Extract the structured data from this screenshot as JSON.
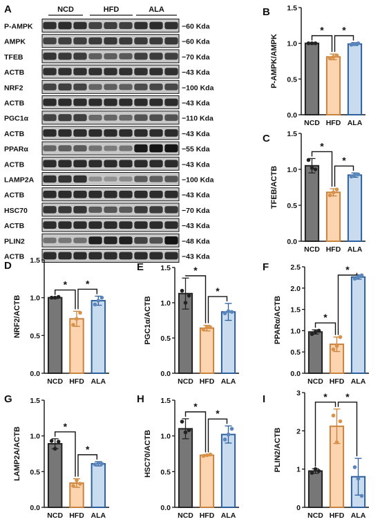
{
  "figure": {
    "blot": {
      "panel_letter": "A",
      "groups": [
        "NCD",
        "HFD",
        "ALA"
      ],
      "rows": [
        {
          "name": "P-AMPK",
          "size": "60 Kda"
        },
        {
          "name": "AMPK",
          "size": "60 Kda"
        },
        {
          "name": "TFEB",
          "size": "70 Kda"
        },
        {
          "name": "ACTB",
          "size": "43 Kda"
        },
        {
          "name": "NRF2",
          "size": "100 Kda"
        },
        {
          "name": "ACTB",
          "size": "43 Kda"
        },
        {
          "name": "PGC1α",
          "size": "110 Kda"
        },
        {
          "name": "ACTB",
          "size": "43 Kda"
        },
        {
          "name": "PPARα",
          "size": "55 Kda"
        },
        {
          "name": "ACTB",
          "size": "43 Kda"
        },
        {
          "name": "LAMP2A",
          "size": "100 Kda"
        },
        {
          "name": "ACTB",
          "size": "43 Kda"
        },
        {
          "name": "HSC70",
          "size": "70 Kda"
        },
        {
          "name": "ACTB",
          "size": "43 Kda"
        },
        {
          "name": "PLIN2",
          "size": "48 Kda"
        },
        {
          "name": "ACTB",
          "size": "43 Kda"
        }
      ],
      "band_intensity": [
        [
          0.8,
          0.82,
          0.8,
          0.7,
          0.72,
          0.72,
          0.8,
          0.82,
          0.8
        ],
        [
          0.7,
          0.72,
          0.72,
          0.74,
          0.76,
          0.75,
          0.74,
          0.74,
          0.76
        ],
        [
          0.78,
          0.76,
          0.74,
          0.55,
          0.56,
          0.58,
          0.72,
          0.74,
          0.72
        ],
        [
          0.8,
          0.8,
          0.8,
          0.8,
          0.8,
          0.8,
          0.8,
          0.8,
          0.8
        ],
        [
          0.7,
          0.72,
          0.7,
          0.52,
          0.55,
          0.55,
          0.66,
          0.68,
          0.68
        ],
        [
          0.82,
          0.82,
          0.82,
          0.82,
          0.82,
          0.82,
          0.82,
          0.82,
          0.82
        ],
        [
          0.7,
          0.72,
          0.72,
          0.5,
          0.52,
          0.5,
          0.62,
          0.64,
          0.62
        ],
        [
          0.82,
          0.82,
          0.82,
          0.82,
          0.82,
          0.82,
          0.82,
          0.82,
          0.82
        ],
        [
          0.52,
          0.55,
          0.58,
          0.45,
          0.4,
          0.44,
          0.92,
          0.95,
          0.95
        ],
        [
          0.82,
          0.82,
          0.82,
          0.82,
          0.82,
          0.82,
          0.82,
          0.82,
          0.82
        ],
        [
          0.8,
          0.78,
          0.8,
          0.3,
          0.28,
          0.32,
          0.58,
          0.56,
          0.6
        ],
        [
          0.82,
          0.82,
          0.82,
          0.82,
          0.82,
          0.82,
          0.82,
          0.82,
          0.82
        ],
        [
          0.78,
          0.76,
          0.78,
          0.58,
          0.6,
          0.58,
          0.75,
          0.74,
          0.76
        ],
        [
          0.82,
          0.82,
          0.82,
          0.82,
          0.82,
          0.82,
          0.82,
          0.82,
          0.82
        ],
        [
          0.45,
          0.42,
          0.46,
          0.88,
          0.86,
          0.88,
          0.7,
          0.62,
          0.95
        ],
        [
          0.82,
          0.82,
          0.82,
          0.82,
          0.82,
          0.82,
          0.82,
          0.82,
          0.82
        ]
      ]
    },
    "colors": {
      "bars": [
        "#777777",
        "#fcd5b0",
        "#c9dbee"
      ],
      "edges": [
        "#222222",
        "#c8823d",
        "#2c5f9e"
      ],
      "points": [
        "#222222",
        "#d8924a",
        "#5b86bb"
      ]
    },
    "significance_marker": "*"
  },
  "chart_data": [
    {
      "panel": "B",
      "type": "bar",
      "categories": [
        "NCD",
        "HFD",
        "ALA"
      ],
      "ylabel": "P-AMPK/AMPK",
      "ylim": [
        0,
        1.5
      ],
      "ticks": [
        0.0,
        0.5,
        1.0,
        1.5
      ],
      "tick_labels": [
        "0.0",
        "0.5",
        "1.0",
        "1.5"
      ],
      "values": [
        1.0,
        0.81,
        0.99
      ],
      "errors": [
        0.01,
        0.04,
        0.02
      ],
      "points": [
        [
          1.0,
          1.0,
          1.0
        ],
        [
          0.79,
          0.81,
          0.83
        ],
        [
          0.98,
          0.99,
          1.0
        ]
      ],
      "significance": [
        [
          0,
          1
        ],
        [
          1,
          2
        ]
      ]
    },
    {
      "panel": "C",
      "type": "bar",
      "categories": [
        "NCD",
        "HFD",
        "ALA"
      ],
      "ylabel": "TFEB/ACTB",
      "ylim": [
        0,
        1.5
      ],
      "ticks": [
        0.0,
        0.5,
        1.0,
        1.5
      ],
      "tick_labels": [
        "0.0",
        "0.5",
        "1.0",
        "1.5"
      ],
      "values": [
        1.05,
        0.68,
        0.92
      ],
      "errors": [
        0.1,
        0.05,
        0.03
      ],
      "points": [
        [
          1.13,
          1.02,
          1.0
        ],
        [
          0.64,
          0.68,
          0.72
        ],
        [
          0.9,
          0.92,
          0.93
        ]
      ],
      "significance": [
        [
          0,
          1
        ],
        [
          1,
          2
        ]
      ]
    },
    {
      "panel": "D",
      "type": "bar",
      "categories": [
        "NCD",
        "HFD",
        "ALA"
      ],
      "ylabel": "NRF2/ACTB",
      "ylim": [
        0,
        1.5
      ],
      "ticks": [
        0.0,
        0.5,
        1.0,
        1.5
      ],
      "tick_labels": [
        "0.0",
        "0.5",
        "1.0",
        "1.5"
      ],
      "values": [
        1.0,
        0.72,
        0.96
      ],
      "errors": [
        0.01,
        0.1,
        0.06
      ],
      "points": [
        [
          1.0,
          1.0,
          1.01
        ],
        [
          0.64,
          0.72,
          0.8
        ],
        [
          0.91,
          0.96,
          1.0
        ]
      ],
      "significance": [
        [
          0,
          1
        ],
        [
          1,
          2
        ]
      ]
    },
    {
      "panel": "E",
      "type": "bar",
      "categories": [
        "NCD",
        "HFD",
        "ALA"
      ],
      "ylabel": "PGC1α/ACTB",
      "ylim": [
        0,
        1.5
      ],
      "ticks": [
        0.0,
        0.5,
        1.0,
        1.5
      ],
      "tick_labels": [
        "0.0",
        "0.5",
        "1.0",
        "1.5"
      ],
      "values": [
        1.13,
        0.64,
        0.87
      ],
      "errors": [
        0.22,
        0.04,
        0.12
      ],
      "points": [
        [
          1.17,
          1.0,
          1.1
        ],
        [
          0.62,
          0.66,
          0.65
        ],
        [
          0.85,
          0.88,
          0.87
        ]
      ],
      "significance": [
        [
          0,
          1
        ],
        [
          1,
          2
        ]
      ]
    },
    {
      "panel": "F",
      "type": "bar",
      "categories": [
        "NCD",
        "HFD",
        "ALA"
      ],
      "ylabel": "PPARα/ACTB",
      "ylim": [
        0,
        2.5
      ],
      "ticks": [
        0.0,
        0.5,
        1.0,
        1.5,
        2.0,
        2.5
      ],
      "tick_labels": [
        "0.0",
        "0.5",
        "1.0",
        "1.5",
        "2.0",
        "2.5"
      ],
      "values": [
        0.97,
        0.68,
        2.26
      ],
      "errors": [
        0.05,
        0.17,
        0.05
      ],
      "points": [
        [
          0.92,
          0.97,
          1.0
        ],
        [
          0.56,
          0.64,
          0.85
        ],
        [
          2.22,
          2.26,
          2.3
        ]
      ],
      "significance": [
        [
          0,
          1
        ],
        [
          1,
          2
        ]
      ]
    },
    {
      "panel": "G",
      "type": "bar",
      "categories": [
        "NCD",
        "HFD",
        "ALA"
      ],
      "ylabel": "LAMP2A/ACTB",
      "ylim": [
        0,
        1.5
      ],
      "ticks": [
        0.0,
        0.5,
        1.0,
        1.5
      ],
      "tick_labels": [
        "0.0",
        "0.5",
        "1.0",
        "1.5"
      ],
      "values": [
        0.89,
        0.34,
        0.61
      ],
      "errors": [
        0.07,
        0.06,
        0.03
      ],
      "points": [
        [
          0.93,
          0.82,
          0.92
        ],
        [
          0.3,
          0.38,
          0.33
        ],
        [
          0.6,
          0.62,
          0.61
        ]
      ],
      "significance": [
        [
          0,
          1
        ],
        [
          1,
          2
        ]
      ]
    },
    {
      "panel": "H",
      "type": "bar",
      "categories": [
        "NCD",
        "HFD",
        "ALA"
      ],
      "ylabel": "HSC70/ACTB",
      "ylim": [
        0,
        1.5
      ],
      "ticks": [
        0.0,
        0.5,
        1.0,
        1.5
      ],
      "tick_labels": [
        "0.0",
        "0.5",
        "1.0",
        "1.5"
      ],
      "values": [
        1.1,
        0.73,
        1.02
      ],
      "errors": [
        0.14,
        0.01,
        0.12
      ],
      "points": [
        [
          1.2,
          1.05,
          1.08
        ],
        [
          0.72,
          0.73,
          0.74
        ],
        [
          0.95,
          1.02,
          1.1
        ]
      ],
      "significance": [
        [
          0,
          1
        ],
        [
          1,
          2
        ]
      ]
    },
    {
      "panel": "I",
      "type": "bar",
      "categories": [
        "NCD",
        "HFD",
        "ALA"
      ],
      "ylabel": "PLIN2/ACTB",
      "ylim": [
        0,
        3
      ],
      "ticks": [
        0,
        1,
        2,
        3
      ],
      "tick_labels": [
        "0",
        "1",
        "2",
        "3"
      ],
      "values": [
        0.95,
        2.12,
        0.8
      ],
      "errors": [
        0.06,
        0.45,
        0.48
      ],
      "points": [
        [
          0.9,
          1.0,
          0.95
        ],
        [
          2.4,
          1.7,
          2.25
        ],
        [
          1.05,
          0.75,
          0.3
        ]
      ],
      "significance": [
        [
          0,
          1
        ],
        [
          1,
          2
        ]
      ]
    }
  ]
}
